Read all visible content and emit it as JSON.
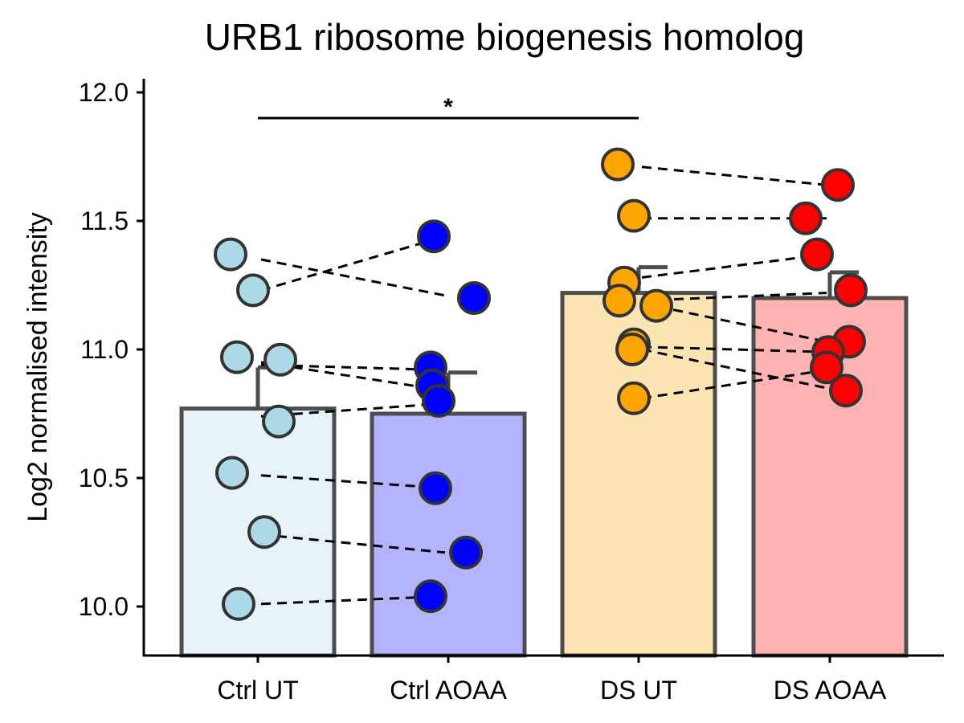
{
  "chart_data": {
    "type": "bar",
    "title": "URB1 ribosome biogenesis homolog",
    "xlabel": "",
    "ylabel": "Log2 normalised intensity",
    "ylim": [
      9.8,
      12.05
    ],
    "yticks": [
      10.0,
      10.5,
      11.0,
      11.5,
      12.0
    ],
    "ytick_labels": [
      "10.0",
      "10.5",
      "11.0",
      "11.5",
      "12.0"
    ],
    "grid": false,
    "legend": "none",
    "categories": [
      "Ctrl UT",
      "Ctrl AOAA",
      "DS UT",
      "DS AOAA"
    ],
    "values": [
      10.77,
      10.75,
      11.22,
      11.2
    ],
    "error_upper": [
      10.93,
      10.91,
      11.32,
      11.3
    ],
    "bar_fill": [
      "#e8f3f9",
      "#b3b3ff",
      "#fce5b3",
      "#ffb3b3"
    ],
    "point_fill": [
      "#add8e6",
      "#0000ff",
      "#ffa500",
      "#ff0000"
    ],
    "outline_color": "#4d4d4d",
    "points": [
      [
        11.37,
        11.23,
        10.97,
        10.96,
        10.72,
        10.52,
        10.29,
        10.01
      ],
      [
        11.44,
        11.2,
        10.93,
        10.86,
        10.8,
        10.46,
        10.21,
        10.04
      ],
      [
        11.72,
        11.52,
        11.26,
        11.19,
        11.17,
        11.02,
        11.0,
        10.81
      ],
      [
        11.64,
        11.51,
        11.37,
        11.23,
        11.03,
        10.99,
        10.93,
        10.84
      ]
    ],
    "pairs_left": [
      [
        [
          11.35,
          11.21
        ],
        [
          11.23,
          11.44
        ],
        [
          10.94,
          10.92
        ],
        [
          10.95,
          10.84
        ],
        [
          10.74,
          10.79
        ],
        [
          10.51,
          10.46
        ],
        [
          10.28,
          10.21
        ],
        [
          10.01,
          10.04
        ]
      ],
      [
        [
          11.71,
          11.64
        ],
        [
          11.51,
          11.51
        ],
        [
          11.28,
          11.37
        ],
        [
          11.19,
          11.22
        ],
        [
          11.18,
          11.03
        ],
        [
          11.01,
          10.99
        ],
        [
          11.0,
          10.85
        ],
        [
          10.81,
          10.92
        ]
      ]
    ],
    "significance": [
      {
        "from": "Ctrl UT",
        "to": "DS UT",
        "y": 11.9,
        "label": "*"
      }
    ]
  }
}
